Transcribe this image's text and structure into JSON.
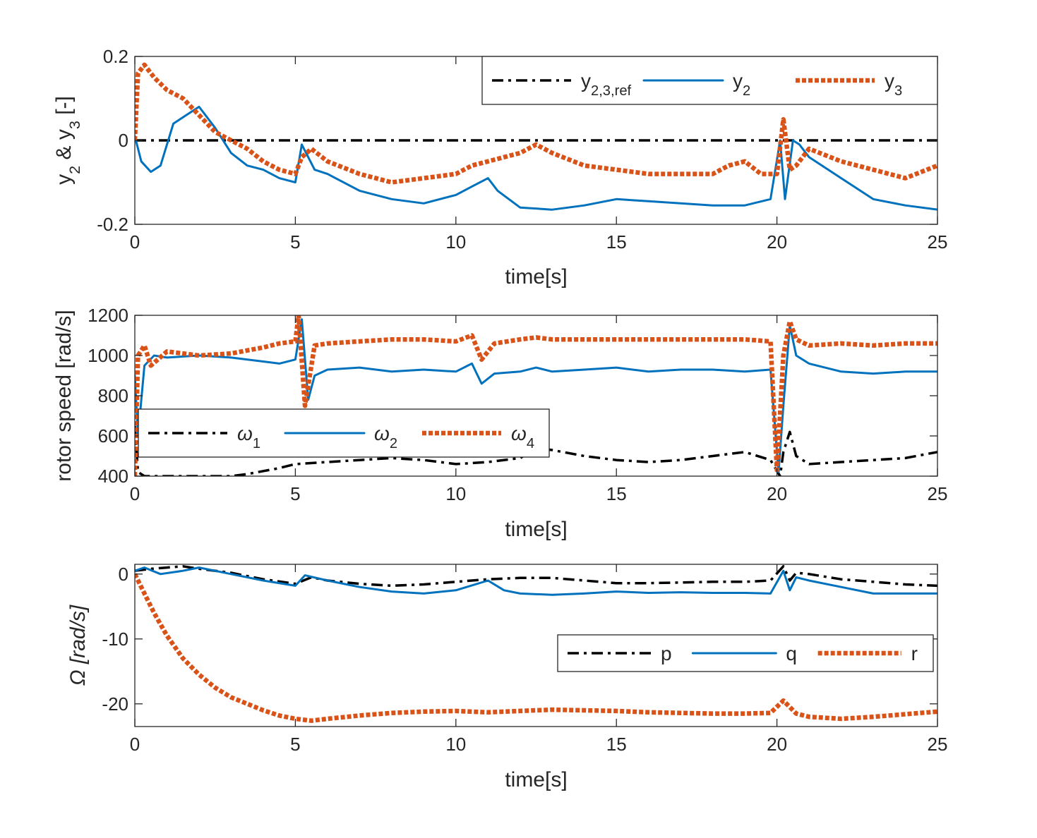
{
  "chart_data": [
    {
      "type": "line",
      "xlabel": "time[s]",
      "ylabel": "y_2 & y_3 [-]",
      "xlim": [
        0,
        25
      ],
      "ylim": [
        -0.2,
        0.2
      ],
      "xticks": [
        0,
        5,
        10,
        15,
        20,
        25
      ],
      "yticks": [
        -0.2,
        0,
        0.2
      ],
      "ytick_labels": [
        "-0.2",
        "0",
        "0.2"
      ],
      "grid": false,
      "legend": {
        "position": "top-right",
        "orientation": "horizontal"
      },
      "series": [
        {
          "name": "y_2,3,ref",
          "color": "#000000",
          "style": "dashdot",
          "x": [
            0,
            25
          ],
          "y": [
            0,
            0
          ]
        },
        {
          "name": "y_2",
          "color": "#0072BD",
          "style": "solid",
          "x": [
            0,
            0.2,
            0.5,
            0.8,
            1.2,
            1.6,
            2.0,
            2.5,
            3.0,
            3.5,
            4.0,
            4.5,
            5.0,
            5.2,
            5.6,
            6.0,
            7.0,
            8.0,
            9.0,
            10.0,
            10.5,
            11.0,
            11.3,
            12.0,
            13.0,
            14.0,
            15.0,
            16.0,
            17.0,
            18.0,
            19.0,
            19.8,
            20.1,
            20.25,
            20.5,
            20.7,
            21.0,
            22.0,
            23.0,
            24.0,
            25.0
          ],
          "y": [
            0.01,
            -0.05,
            -0.075,
            -0.06,
            0.04,
            0.06,
            0.08,
            0.03,
            -0.03,
            -0.06,
            -0.07,
            -0.09,
            -0.1,
            -0.01,
            -0.07,
            -0.08,
            -0.12,
            -0.14,
            -0.15,
            -0.13,
            -0.11,
            -0.09,
            -0.12,
            -0.16,
            -0.165,
            -0.155,
            -0.14,
            -0.145,
            -0.15,
            -0.155,
            -0.155,
            -0.14,
            0.0,
            -0.14,
            0.0,
            -0.01,
            -0.04,
            -0.09,
            -0.14,
            -0.155,
            -0.165
          ]
        },
        {
          "name": "y_3",
          "color": "#D95319",
          "style": "dotted",
          "x": [
            0,
            0.1,
            0.3,
            0.6,
            1.0,
            1.5,
            2.0,
            2.5,
            3.0,
            3.5,
            4.0,
            4.5,
            5.0,
            5.2,
            5.5,
            6.0,
            7.0,
            8.0,
            9.0,
            10.0,
            10.5,
            11.0,
            11.5,
            12.0,
            12.5,
            13.0,
            14.0,
            15.0,
            16.0,
            17.0,
            18.0,
            18.5,
            19.0,
            19.5,
            20.0,
            20.2,
            20.4,
            20.6,
            21.0,
            22.0,
            23.0,
            24.0,
            25.0
          ],
          "y": [
            0.0,
            0.16,
            0.18,
            0.15,
            0.12,
            0.1,
            0.06,
            0.02,
            0.0,
            -0.02,
            -0.05,
            -0.07,
            -0.08,
            -0.04,
            -0.02,
            -0.05,
            -0.08,
            -0.1,
            -0.09,
            -0.08,
            -0.06,
            -0.05,
            -0.04,
            -0.03,
            -0.01,
            -0.03,
            -0.06,
            -0.07,
            -0.08,
            -0.08,
            -0.08,
            -0.06,
            -0.05,
            -0.08,
            -0.08,
            0.05,
            -0.07,
            -0.06,
            -0.02,
            -0.05,
            -0.07,
            -0.09,
            -0.06
          ]
        }
      ]
    },
    {
      "type": "line",
      "xlabel": "time[s]",
      "ylabel": "rotor speed [rad/s]",
      "xlim": [
        0,
        25
      ],
      "ylim": [
        400,
        1200
      ],
      "xticks": [
        0,
        5,
        10,
        15,
        20,
        25
      ],
      "yticks": [
        400,
        600,
        800,
        1000,
        1200
      ],
      "ytick_labels": [
        "400",
        "600",
        "800",
        "1000",
        "1200"
      ],
      "grid": false,
      "legend": {
        "position": "bottom-left",
        "orientation": "horizontal"
      },
      "series": [
        {
          "name": "ω_1",
          "color": "#000000",
          "style": "dashdot",
          "x": [
            0,
            0.1,
            0.3,
            1.0,
            2.0,
            3.0,
            3.5,
            4.5,
            5.0,
            6.0,
            7.0,
            8.0,
            9.0,
            10.0,
            11.0,
            12.0,
            12.5,
            13.0,
            14.0,
            15.0,
            16.0,
            17.0,
            18.0,
            19.0,
            19.8,
            20.1,
            20.2,
            20.4,
            20.6,
            21.0,
            22.0,
            23.0,
            24.0,
            25.0
          ],
          "y": [
            650,
            420,
            400,
            400,
            400,
            400,
            410,
            440,
            460,
            470,
            480,
            490,
            480,
            460,
            470,
            490,
            540,
            530,
            500,
            480,
            470,
            480,
            500,
            520,
            480,
            400,
            520,
            620,
            500,
            460,
            470,
            480,
            490,
            520
          ]
        },
        {
          "name": "ω_2",
          "color": "#0072BD",
          "style": "solid",
          "x": [
            0,
            0.1,
            0.3,
            0.6,
            1.0,
            2.0,
            3.0,
            4.0,
            4.5,
            5.0,
            5.2,
            5.4,
            5.6,
            6.0,
            7.0,
            8.0,
            9.0,
            10.0,
            10.5,
            10.8,
            11.2,
            12.0,
            12.5,
            13.0,
            14.0,
            15.0,
            16.0,
            17.0,
            18.0,
            19.0,
            19.8,
            20.05,
            20.2,
            20.4,
            20.6,
            21.0,
            22.0,
            23.0,
            24.0,
            25.0
          ],
          "y": [
            900,
            600,
            950,
            1000,
            990,
            1000,
            990,
            970,
            960,
            980,
            1180,
            780,
            900,
            930,
            940,
            920,
            930,
            920,
            960,
            860,
            910,
            920,
            940,
            920,
            930,
            940,
            920,
            930,
            930,
            920,
            930,
            420,
            750,
            1150,
            1000,
            960,
            920,
            910,
            920,
            920
          ]
        },
        {
          "name": "ω_4",
          "color": "#D95319",
          "style": "dotted",
          "x": [
            0,
            0.1,
            0.3,
            0.5,
            1.0,
            2.0,
            3.0,
            4.0,
            4.5,
            5.0,
            5.1,
            5.3,
            5.6,
            6.0,
            7.0,
            8.0,
            9.0,
            10.0,
            10.5,
            10.8,
            11.2,
            12.0,
            12.5,
            13.0,
            14.0,
            15.0,
            16.0,
            17.0,
            18.0,
            19.0,
            19.8,
            20.0,
            20.2,
            20.4,
            20.6,
            21.0,
            22.0,
            23.0,
            24.0,
            25.0
          ],
          "y": [
            400,
            1000,
            1050,
            950,
            1020,
            1000,
            1010,
            1040,
            1060,
            1070,
            1200,
            750,
            1050,
            1060,
            1070,
            1080,
            1080,
            1070,
            1100,
            980,
            1060,
            1080,
            1090,
            1080,
            1080,
            1080,
            1080,
            1080,
            1080,
            1080,
            1070,
            430,
            1000,
            1170,
            1080,
            1050,
            1060,
            1050,
            1060,
            1060
          ]
        }
      ]
    },
    {
      "type": "line",
      "xlabel": "time[s]",
      "ylabel": "Ω [rad/s]",
      "xlim": [
        0,
        25
      ],
      "ylim": [
        -23.5,
        1.5
      ],
      "xticks": [
        0,
        5,
        10,
        15,
        20,
        25
      ],
      "yticks": [
        -20,
        -10,
        0
      ],
      "ytick_labels": [
        "-20",
        "-10",
        "0"
      ],
      "grid": false,
      "legend": {
        "position": "center-right",
        "orientation": "horizontal"
      },
      "series": [
        {
          "name": "p",
          "color": "#000000",
          "style": "dashdot",
          "x": [
            0,
            0.5,
            1.0,
            1.5,
            2.0,
            3.0,
            4.0,
            5.0,
            5.5,
            6.0,
            7.0,
            8.0,
            9.0,
            10.0,
            11.0,
            12.0,
            13.0,
            14.0,
            15.0,
            16.0,
            17.0,
            18.0,
            19.0,
            19.8,
            20.2,
            20.4,
            20.6,
            21.0,
            22.0,
            23.0,
            24.0,
            25.0
          ],
          "y": [
            0.5,
            0.8,
            1.0,
            1.2,
            0.8,
            0.2,
            -0.8,
            -1.5,
            -0.5,
            -1.0,
            -1.5,
            -1.8,
            -1.6,
            -1.2,
            -0.8,
            -0.6,
            -0.6,
            -1.0,
            -1.4,
            -1.4,
            -1.3,
            -1.2,
            -1.2,
            -1.0,
            1.2,
            -1.0,
            0.2,
            0.0,
            -0.8,
            -1.2,
            -1.6,
            -1.8
          ]
        },
        {
          "name": "q",
          "color": "#0072BD",
          "style": "solid",
          "x": [
            0,
            0.3,
            0.8,
            1.5,
            2.0,
            3.0,
            4.0,
            5.0,
            5.3,
            6.0,
            7.0,
            8.0,
            9.0,
            10.0,
            11.0,
            11.5,
            12.0,
            13.0,
            14.0,
            15.0,
            16.0,
            17.0,
            18.0,
            19.0,
            19.8,
            20.2,
            20.4,
            20.6,
            21.0,
            22.0,
            23.0,
            24.0,
            25.0
          ],
          "y": [
            0.5,
            1.0,
            0.0,
            0.5,
            1.0,
            0.0,
            -1.0,
            -1.8,
            -0.2,
            -1.0,
            -2.0,
            -2.7,
            -3.0,
            -2.5,
            -1.0,
            -2.5,
            -3.0,
            -3.2,
            -3.0,
            -2.7,
            -2.9,
            -2.8,
            -2.9,
            -2.9,
            -3.0,
            0.5,
            -2.5,
            -0.5,
            -1.0,
            -2.0,
            -3.0,
            -3.0,
            -3.0
          ]
        },
        {
          "name": "r",
          "color": "#D95319",
          "style": "dotted",
          "x": [
            0,
            0.3,
            0.6,
            1.0,
            1.5,
            2.0,
            2.5,
            3.0,
            3.5,
            4.0,
            4.5,
            5.0,
            5.5,
            6.0,
            7.0,
            8.0,
            9.0,
            10.0,
            11.0,
            12.0,
            13.0,
            14.0,
            15.0,
            16.0,
            17.0,
            18.0,
            19.0,
            19.8,
            20.2,
            20.4,
            20.6,
            21.0,
            22.0,
            23.0,
            24.0,
            25.0
          ],
          "y": [
            0.0,
            -3.0,
            -6.0,
            -9.5,
            -13.0,
            -15.5,
            -17.5,
            -19.0,
            -20.0,
            -21.0,
            -21.8,
            -22.3,
            -22.6,
            -22.3,
            -21.8,
            -21.4,
            -21.2,
            -21.1,
            -21.3,
            -21.1,
            -20.9,
            -21.0,
            -21.1,
            -21.3,
            -21.4,
            -21.5,
            -21.5,
            -21.4,
            -19.5,
            -20.5,
            -21.5,
            -22.0,
            -22.3,
            -22.0,
            -21.6,
            -21.2
          ]
        }
      ]
    }
  ]
}
